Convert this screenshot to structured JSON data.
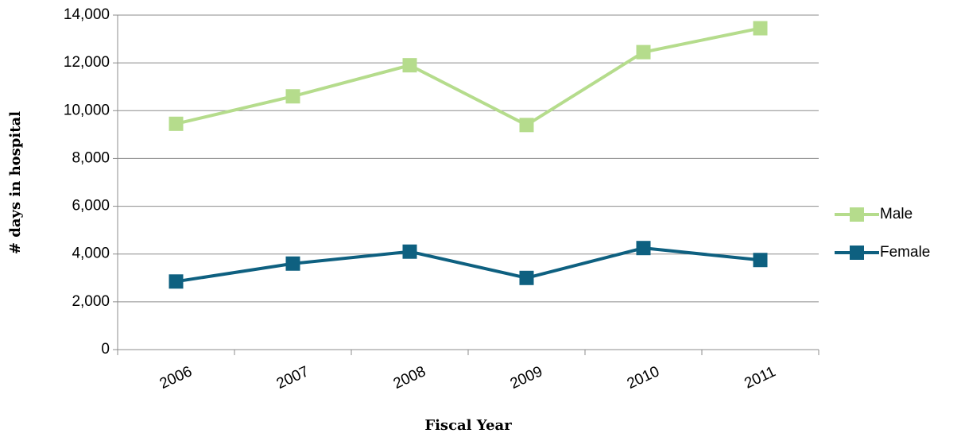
{
  "chart_data": {
    "type": "line",
    "xlabel": "Fiscal Year",
    "ylabel": "# days in hospital",
    "categories": [
      "2006",
      "2007",
      "2008",
      "2009",
      "2010",
      "2011"
    ],
    "series": [
      {
        "name": "Male",
        "color": "#b5dc8c",
        "values": [
          9450,
          10600,
          11900,
          9400,
          12450,
          13450
        ]
      },
      {
        "name": "Female",
        "color": "#0e6080",
        "values": [
          2850,
          3600,
          4100,
          3000,
          4250,
          3750
        ]
      }
    ],
    "ylim": [
      0,
      14000
    ],
    "yticks": [
      0,
      {
        "value": 2000,
        "label": "2,000"
      },
      {
        "value": 4000,
        "label": "4,000"
      },
      {
        "value": 6000,
        "label": "6,000"
      },
      {
        "value": 8000,
        "label": "8,000"
      },
      {
        "value": 10000,
        "label": "10,000"
      },
      {
        "value": 12000,
        "label": "12,000"
      },
      {
        "value": 14000,
        "label": "14,000"
      }
    ],
    "grid": true,
    "legend": "right"
  }
}
